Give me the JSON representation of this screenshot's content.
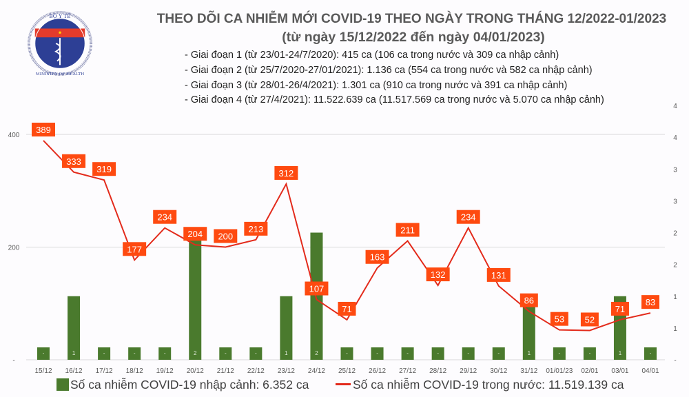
{
  "logo": {
    "top_text": "BỘ Y TẾ",
    "bottom_text": "MINISTRY OF HEALTH"
  },
  "header": {
    "title": "THEO DÕI CA NHIỄM MỚI COVID-19 THEO NGÀY TRONG THÁNG 12/2022-01/2023",
    "subtitle": "(từ ngày 15/12/2022 đến ngày 04/01/2023)",
    "phases": [
      "- Giai đoạn 1 (từ 23/01-24/7/2020): 415 ca (106 ca trong nước và 309 ca nhập cảnh)",
      "- Giai đoạn 2 (từ 25/7/2020-27/01/2021): 1.136 ca (554 ca trong nước và 582 ca nhập cảnh)",
      "- Giai đoạn 3 (từ 28/01-26/4/2021): 1.301 ca (910 ca trong nước và 391 ca nhập cảnh)",
      "- Giai đoạn 4 (từ 27/4/2021): 11.522.639 ca (11.517.569 ca trong nước và 5.070 ca nhập cảnh)"
    ]
  },
  "chart_data": {
    "type": "bar+line",
    "categories": [
      "15/12",
      "16/12",
      "17/12",
      "18/12",
      "19/12",
      "20/12",
      "21/12",
      "22/12",
      "23/12",
      "24/12",
      "25/12",
      "26/12",
      "27/12",
      "28/12",
      "29/12",
      "30/12",
      "31/12",
      "01/01/23",
      "02/01",
      "03/01",
      "04/01"
    ],
    "series": [
      {
        "name": "Số ca nhiễm COVID-19 nhập cảnh: 6.352 ca",
        "type": "bar",
        "axis": "right",
        "color": "#4a7a2d",
        "values": [
          0,
          1,
          0,
          0,
          0,
          2,
          0,
          0,
          1,
          2,
          0,
          0,
          0,
          0,
          0,
          0,
          1,
          0,
          0,
          1,
          0
        ]
      },
      {
        "name": "Số ca nhiễm COVID-19 trong nước: 11.519.139 ca",
        "type": "line",
        "axis": "left",
        "color": "#e32b1c",
        "values": [
          389,
          333,
          319,
          177,
          234,
          204,
          200,
          213,
          312,
          107,
          71,
          163,
          211,
          132,
          234,
          131,
          86,
          53,
          52,
          71,
          83
        ]
      }
    ],
    "left_axis": {
      "range": [
        0,
        400
      ],
      "ticks": [
        "-",
        "200",
        "400"
      ]
    },
    "right_axis": {
      "range": [
        0,
        4
      ],
      "ticks": [
        "-",
        "1",
        "1",
        "2",
        "2",
        "3",
        "3",
        "4",
        "4"
      ]
    },
    "zero_label": "-",
    "label_color": "#fe4a10",
    "grid": true,
    "legend": "bottom"
  }
}
